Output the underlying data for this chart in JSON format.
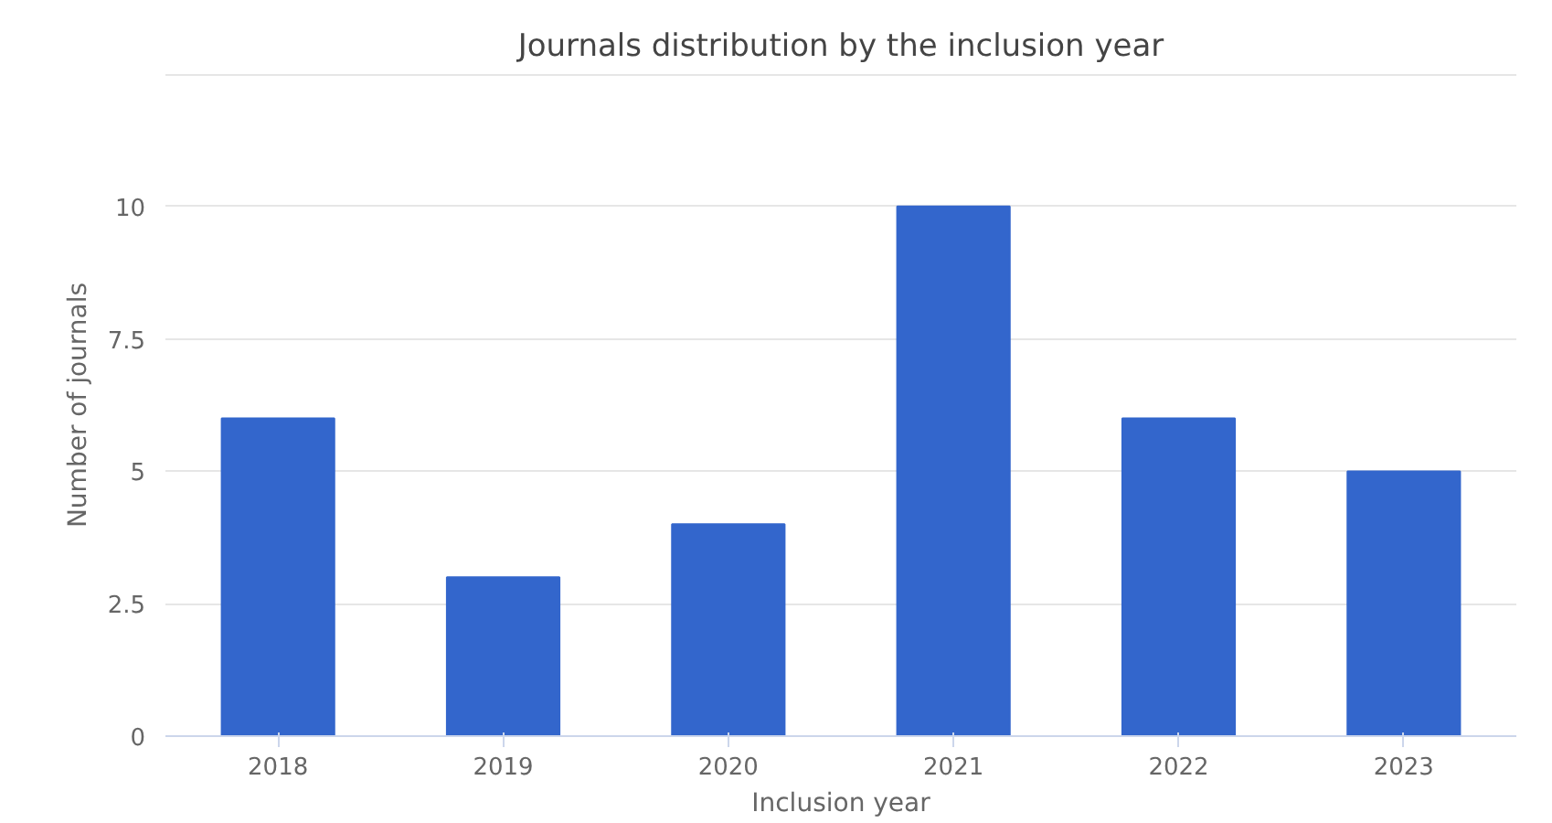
{
  "chart_data": {
    "type": "bar",
    "title": "Journals distribution by the inclusion year",
    "xlabel": "Inclusion year",
    "ylabel": "Number of journals",
    "categories": [
      "2018",
      "2019",
      "2020",
      "2021",
      "2022",
      "2023"
    ],
    "values": [
      6,
      3,
      4,
      10,
      6,
      5
    ],
    "color": "#3366cc",
    "ylim": [
      0,
      12.5
    ],
    "yticks": [
      0,
      2.5,
      5,
      7.5,
      10,
      {
        "value": 12.5,
        "label": null
      }
    ],
    "grid": "y"
  }
}
